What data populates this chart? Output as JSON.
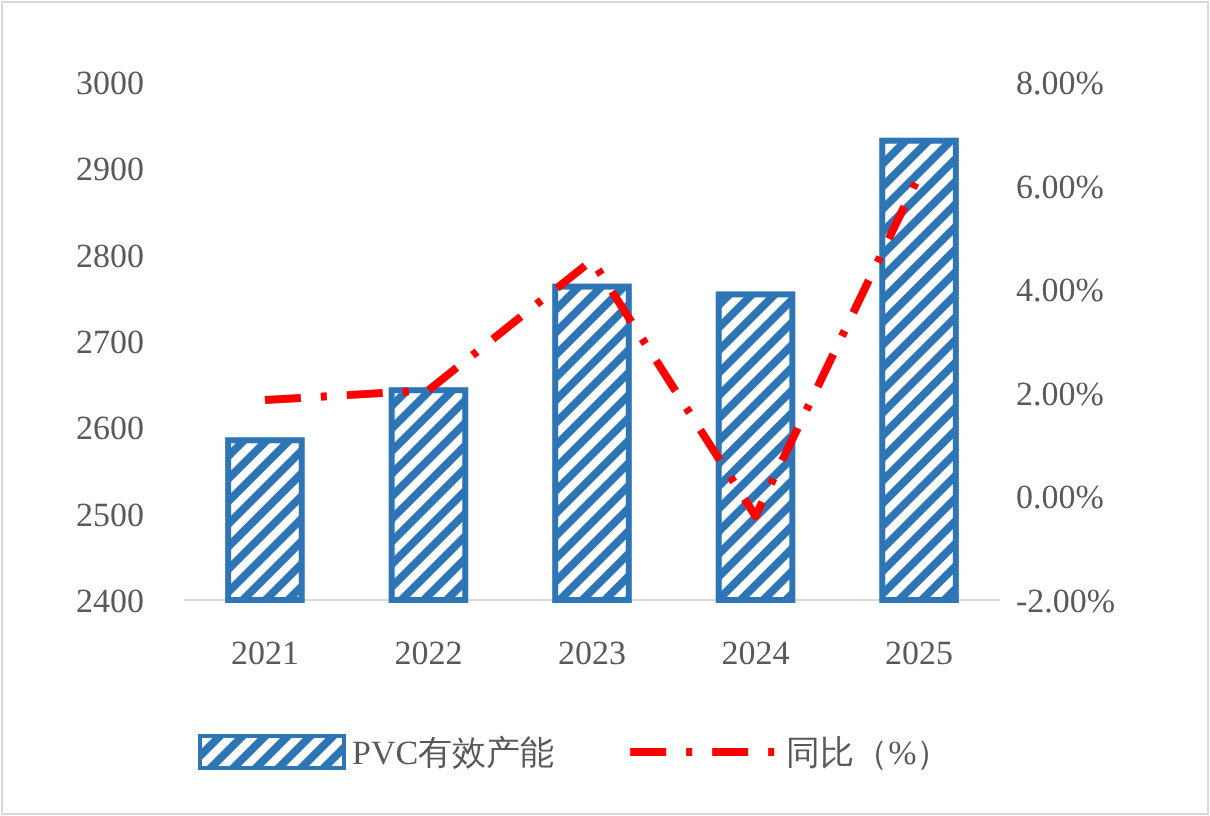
{
  "chart_data": {
    "type": "bar",
    "categories": [
      "2021",
      "2022",
      "2023",
      "2024",
      "2025"
    ],
    "series": [
      {
        "name": "PVC有效产能",
        "color": "#2e75b6",
        "values": [
          2585,
          2643,
          2763,
          2754,
          2932
        ]
      },
      {
        "name": "同比（%）",
        "type": "line",
        "axis": "y2",
        "color": "#ff0000",
        "line_style": "dashed",
        "values": [
          1.86,
          2.05,
          4.56,
          -0.38,
          6.19
        ]
      }
    ],
    "ylim": [
      2400,
      3000
    ],
    "yticks": [
      2400,
      2500,
      2600,
      2700,
      2800,
      2900,
      3000
    ],
    "y2lim": [
      -2,
      8
    ],
    "y2ticks": [
      {
        "value": -2,
        "label": "-2.00%"
      },
      {
        "value": 0,
        "label": "0.00%"
      },
      {
        "value": 2,
        "label": "2.00%"
      },
      {
        "value": 4,
        "label": "4.00%"
      },
      {
        "value": 6,
        "label": "6.00%"
      },
      {
        "value": 8,
        "label": "8.00%"
      }
    ],
    "grid": false,
    "legend": "bottom"
  }
}
